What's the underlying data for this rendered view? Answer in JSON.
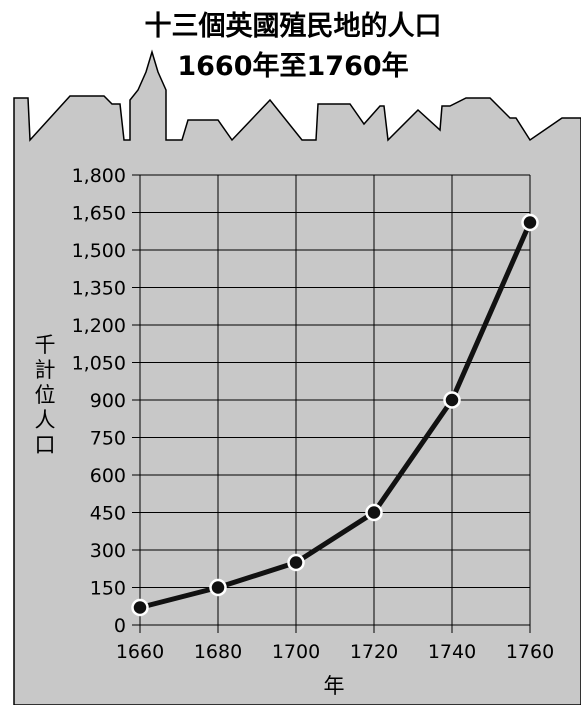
{
  "chart_data": {
    "type": "line",
    "title": "十三個英國殖民地的人口",
    "subtitle": "1660年至1760年",
    "xlabel": "年",
    "ylabel": "千計位人口",
    "x": [
      1660,
      1680,
      1700,
      1720,
      1740,
      1760
    ],
    "series": [
      {
        "values": [
          70,
          150,
          250,
          450,
          900,
          1610
        ]
      }
    ],
    "xlim": [
      1660,
      1760
    ],
    "ylim": [
      0,
      1800
    ],
    "xticks": [
      "1660",
      "1680",
      "1700",
      "1720",
      "1740",
      "1760"
    ],
    "yticks": [
      "0",
      "150",
      "300",
      "450",
      "600",
      "750",
      "900",
      "1,050",
      "1,200",
      "1,350",
      "1,500",
      "1,650",
      "1,800"
    ],
    "grid": true,
    "colors": {
      "background": "#c8c8c8",
      "line": "#111111",
      "marker_fill": "#111111",
      "marker_stroke": "#ffffff"
    }
  }
}
